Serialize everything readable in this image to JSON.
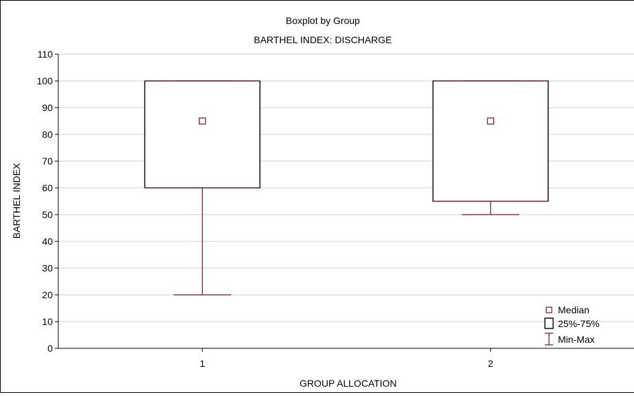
{
  "chart_data": {
    "type": "boxplot",
    "title": "Boxplot by Group",
    "subtitle": "BARTHEL INDEX: DISCHARGE",
    "xlabel": "GROUP ALLOCATION",
    "ylabel": "BARTHEL INDEX",
    "ylim": [
      0,
      110
    ],
    "yticks": [
      0,
      10,
      20,
      30,
      40,
      50,
      60,
      70,
      80,
      90,
      100,
      110
    ],
    "categories": [
      "1",
      "2"
    ],
    "boxes": [
      {
        "category": "1",
        "min": 20,
        "q1": 60,
        "median": 85,
        "q3": 100,
        "max": 100
      },
      {
        "category": "2",
        "min": 50,
        "q1": 55,
        "median": 85,
        "q3": 100,
        "max": 100
      }
    ],
    "grid": "horizontal",
    "legend_position": "bottom-right",
    "legend": [
      {
        "key": "median",
        "label": "Median"
      },
      {
        "key": "box",
        "label": "25%-75%"
      },
      {
        "key": "range",
        "label": "Min-Max"
      }
    ],
    "colors": {
      "series": "#7a0f17",
      "grid": "#d0d0d0",
      "axis": "#000000"
    }
  }
}
